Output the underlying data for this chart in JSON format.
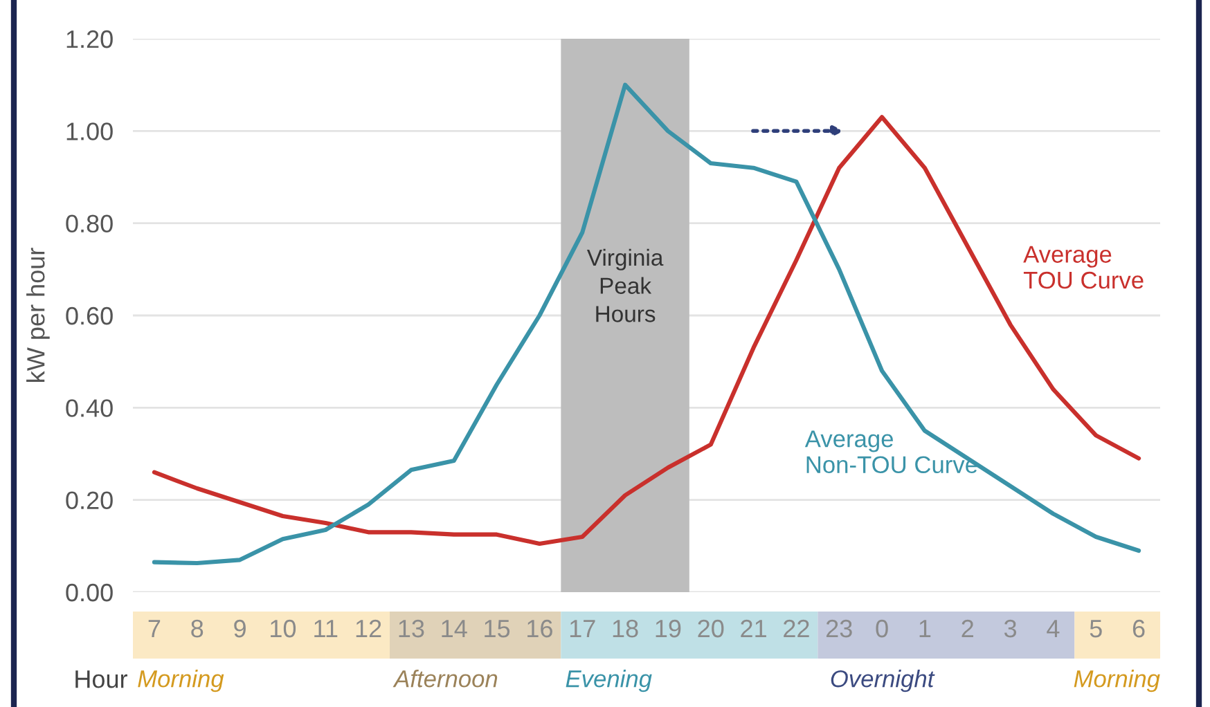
{
  "chart_data": {
    "type": "line",
    "categories": [
      "7",
      "8",
      "9",
      "10",
      "11",
      "12",
      "13",
      "14",
      "15",
      "16",
      "17",
      "18",
      "19",
      "20",
      "21",
      "22",
      "23",
      "0",
      "1",
      "2",
      "3",
      "4",
      "5",
      "6"
    ],
    "series": [
      {
        "name": "Average\nTOU Curve",
        "color": "#c9302c",
        "values": [
          0.26,
          0.225,
          0.195,
          0.165,
          0.15,
          0.13,
          0.13,
          0.125,
          0.125,
          0.105,
          0.12,
          0.21,
          0.27,
          0.32,
          0.53,
          0.72,
          0.92,
          1.03,
          0.92,
          0.75,
          0.58,
          0.44,
          0.34,
          0.29
        ]
      },
      {
        "name": "Average\nNon-TOU Curve",
        "color": "#3a93a8",
        "values": [
          0.065,
          0.063,
          0.07,
          0.115,
          0.135,
          0.19,
          0.265,
          0.285,
          0.45,
          0.6,
          0.78,
          1.1,
          1.0,
          0.93,
          0.92,
          0.89,
          0.7,
          0.48,
          0.35,
          0.29,
          0.23,
          0.17,
          0.12,
          0.09
        ]
      }
    ],
    "ylabel": "kW per hour",
    "xlabel": "Hour",
    "ylim": [
      0,
      1.2
    ],
    "yticks": [
      {
        "value": 0,
        "label": "0.00"
      },
      {
        "value": 0.2,
        "label": "0.20"
      },
      {
        "value": 0.4,
        "label": "0.40"
      },
      {
        "value": 0.6,
        "label": "0.60"
      },
      {
        "value": 0.8,
        "label": "0.80"
      },
      {
        "value": 1.0,
        "label": "1.00"
      },
      {
        "value": 1.2,
        "label": "1.20"
      }
    ],
    "bands": [
      {
        "axis": "x",
        "from": "17",
        "to": "19",
        "label": "Virginia\nPeak\nHours",
        "color": "#bdbdbd"
      }
    ],
    "annotations": [
      "Morning",
      "Afternoon",
      "Evening",
      "Overnight",
      "Morning"
    ],
    "grid": "y",
    "marker": "none",
    "line_style": "solid",
    "legend": false
  }
}
